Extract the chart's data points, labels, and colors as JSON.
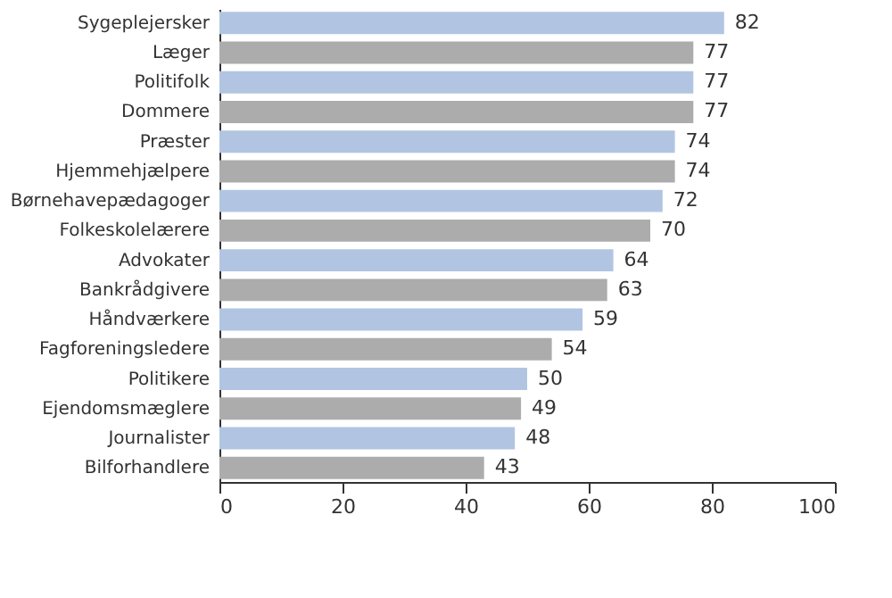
{
  "chart_data": {
    "type": "bar",
    "orientation": "horizontal",
    "categories": [
      "Sygeplejersker",
      "Læger",
      "Politifolk",
      "Dommere",
      "Præster",
      "Hjemmehjælpere",
      "Børnehavepædagoger",
      "Folkeskolelærere",
      "Advokater",
      "Bankrådgivere",
      "Håndværkere",
      "Fagforeningsledere",
      "Politikere",
      "Ejendomsmæglere",
      "Journalister",
      "Bilforhandlere"
    ],
    "values": [
      82,
      77,
      77,
      77,
      74,
      74,
      72,
      70,
      64,
      63,
      59,
      54,
      50,
      49,
      48,
      43
    ],
    "colors": [
      "#b1c5e3",
      "#acacac",
      "#b1c5e3",
      "#acacac",
      "#b1c5e3",
      "#acacac",
      "#b1c5e3",
      "#acacac",
      "#b1c5e3",
      "#acacac",
      "#b1c5e3",
      "#acacac",
      "#b1c5e3",
      "#acacac",
      "#b1c5e3",
      "#acacac"
    ],
    "xlim": [
      0,
      100
    ],
    "xticks": [
      0,
      20,
      40,
      60,
      80,
      100
    ],
    "data_labels": true,
    "grid": false
  }
}
